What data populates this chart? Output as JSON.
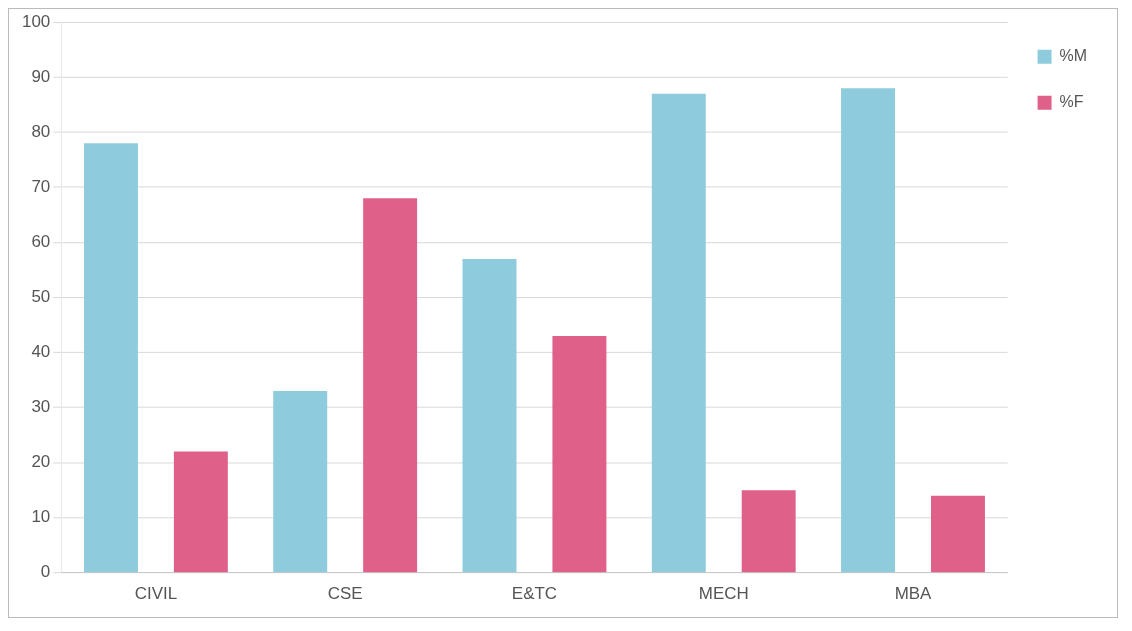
{
  "chart_data": {
    "type": "bar",
    "categories": [
      "CIVIL",
      "CSE",
      "E&TC",
      "MECH",
      "MBA"
    ],
    "series": [
      {
        "name": "%M",
        "color": "#8ecbdc",
        "values": [
          78,
          33,
          57,
          87,
          88
        ]
      },
      {
        "name": "%F",
        "color": "#df6088",
        "values": [
          22,
          68,
          43,
          15,
          14
        ]
      }
    ],
    "ylim": [
      0,
      100
    ],
    "yticks": [
      0,
      10,
      20,
      30,
      40,
      50,
      60,
      70,
      80,
      90,
      100
    ],
    "grid": "y",
    "legend": "top right"
  }
}
